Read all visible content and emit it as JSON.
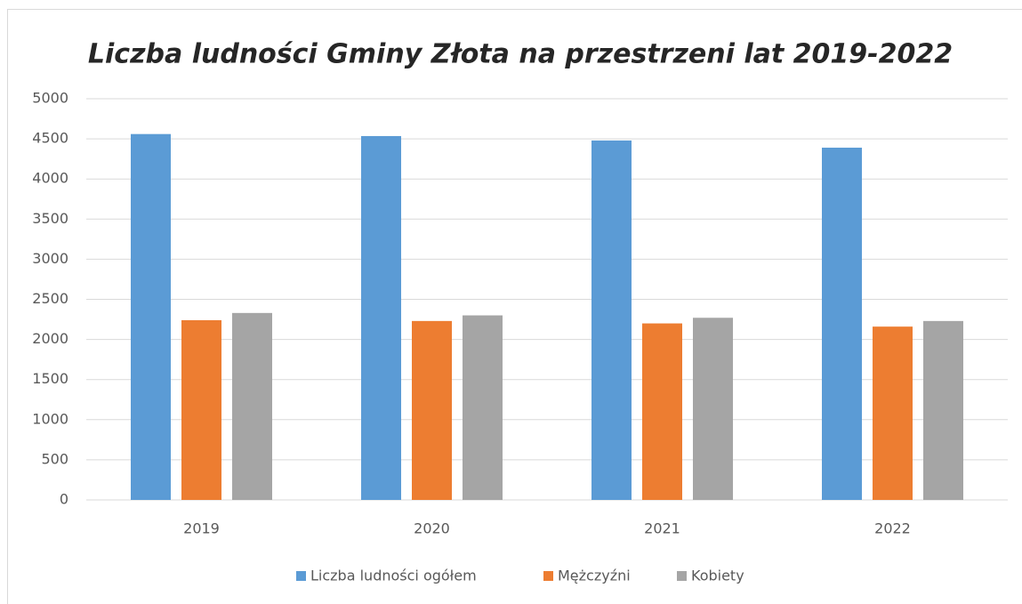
{
  "chart_data": {
    "type": "bar",
    "title": "Liczba ludności Gminy Złota na przestrzeni lat 2019-2022",
    "categories": [
      "2019",
      "2020",
      "2021",
      "2022"
    ],
    "series": [
      {
        "name": "Liczba ludności ogółem",
        "color": "#5b9bd5",
        "values": [
          4560,
          4535,
          4480,
          4390
        ]
      },
      {
        "name": "Mężczyźni",
        "color": "#ed7d31",
        "values": [
          2240,
          2230,
          2200,
          2160
        ]
      },
      {
        "name": "Kobiety",
        "color": "#a5a5a5",
        "values": [
          2330,
          2300,
          2270,
          2230
        ]
      }
    ],
    "ylim": [
      0,
      5000
    ],
    "yticks": [
      0,
      500,
      1000,
      1500,
      2000,
      2500,
      3000,
      3500,
      4000,
      4500,
      5000
    ],
    "grid": true,
    "legend": "bottom"
  }
}
